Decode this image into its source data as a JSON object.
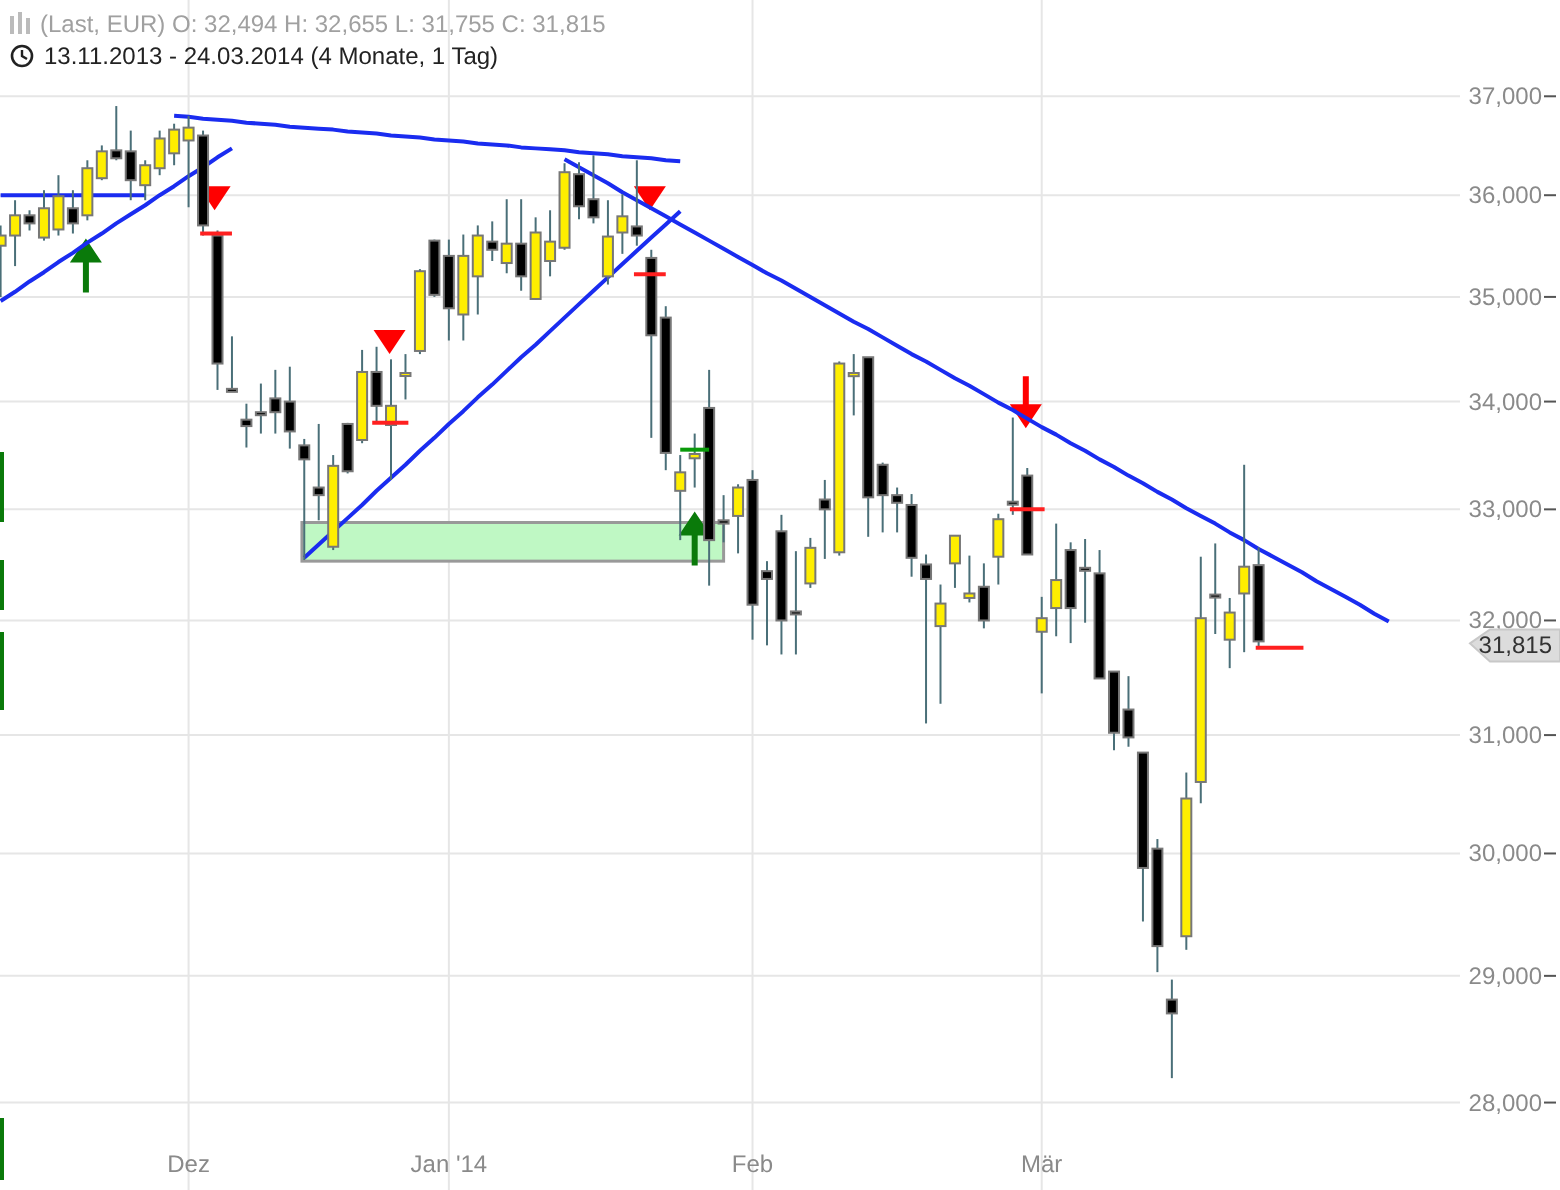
{
  "chart_data": {
    "type": "candlestick",
    "title": "(Last, EUR)   O: 32,494   H: 32,655   L: 31,755   C: 31,815",
    "subtitle": "13.11.2013 - 24.03.2014 (4 Monate, 1 Tag)",
    "categories": [
      null,
      null,
      null,
      null,
      null,
      null,
      null,
      null,
      null,
      null,
      null,
      null,
      null,
      "Dez",
      null,
      null,
      null,
      null,
      null,
      null,
      null,
      null,
      null,
      null,
      null,
      null,
      null,
      null,
      null,
      null,
      null,
      "Jan '14",
      null,
      null,
      null,
      null,
      null,
      null,
      null,
      null,
      null,
      null,
      null,
      null,
      null,
      null,
      null,
      null,
      null,
      null,
      null,
      null,
      "Feb",
      null,
      null,
      null,
      null,
      null,
      null,
      null,
      null,
      null,
      null,
      null,
      null,
      null,
      null,
      null,
      null,
      null,
      null,
      null,
      "Mär",
      null,
      null,
      null,
      null,
      null,
      null,
      null,
      null,
      null,
      null,
      null,
      null,
      null,
      null,
      null,
      null,
      null,
      null,
      null,
      null,
      null,
      null,
      null,
      null,
      null,
      null,
      null,
      null,
      null,
      null,
      null,
      null,
      null,
      null,
      null
    ],
    "ohlc": [
      [
        35500,
        35700,
        35000,
        35600
      ],
      [
        35600,
        35950,
        35300,
        35800
      ],
      [
        35800,
        35850,
        35650,
        35720
      ],
      [
        35580,
        36050,
        35550,
        35870
      ],
      [
        35660,
        36200,
        35600,
        35990
      ],
      [
        35870,
        36050,
        35620,
        35720
      ],
      [
        35800,
        36350,
        35750,
        36270
      ],
      [
        36170,
        36500,
        36150,
        36440
      ],
      [
        36450,
        36900,
        36350,
        36370
      ],
      [
        36440,
        36650,
        35950,
        36150
      ],
      [
        36100,
        36350,
        35950,
        36300
      ],
      [
        36270,
        36650,
        36200,
        36570
      ],
      [
        36420,
        36720,
        36300,
        36660
      ],
      [
        36550,
        36800,
        35880,
        36680
      ],
      [
        36600,
        36650,
        35600,
        35700
      ],
      [
        35600,
        35650,
        34110,
        34360
      ],
      [
        34120,
        34620,
        34090,
        34100
      ],
      [
        33830,
        33980,
        33570,
        33770
      ],
      [
        33900,
        34170,
        33700,
        33880
      ],
      [
        34030,
        34300,
        33700,
        33900
      ],
      [
        34000,
        34330,
        33560,
        33720
      ],
      [
        33590,
        33650,
        32540,
        33460
      ],
      [
        33200,
        33790,
        32900,
        33130
      ],
      [
        32660,
        33500,
        32630,
        33400
      ],
      [
        33790,
        33800,
        33330,
        33350
      ],
      [
        33640,
        34490,
        33610,
        34280
      ],
      [
        34280,
        34520,
        33790,
        33960
      ],
      [
        33780,
        34400,
        33270,
        33960
      ],
      [
        34250,
        34450,
        34020,
        34270
      ],
      [
        34480,
        35270,
        34450,
        35250
      ],
      [
        35550,
        35560,
        35000,
        35020
      ],
      [
        35400,
        35560,
        34580,
        34890
      ],
      [
        34830,
        35610,
        34580,
        35400
      ],
      [
        35200,
        35700,
        34830,
        35600
      ],
      [
        35540,
        35740,
        35350,
        35460
      ],
      [
        35330,
        35960,
        35230,
        35520
      ],
      [
        35520,
        35960,
        35060,
        35200
      ],
      [
        34980,
        35780,
        34970,
        35630
      ],
      [
        35350,
        35850,
        35200,
        35540
      ],
      [
        35480,
        36320,
        35460,
        36230
      ],
      [
        36210,
        36330,
        35760,
        35890
      ],
      [
        35960,
        36400,
        35720,
        35780
      ],
      [
        35200,
        35950,
        35120,
        35590
      ],
      [
        35630,
        36010,
        35420,
        35790
      ],
      [
        35690,
        36350,
        35500,
        35600
      ],
      [
        35380,
        35460,
        33660,
        34630
      ],
      [
        34800,
        34910,
        33360,
        33520
      ],
      [
        33170,
        33500,
        32720,
        33340
      ],
      [
        33470,
        33700,
        33200,
        33510
      ],
      [
        33940,
        34300,
        32310,
        32720
      ],
      [
        32900,
        33130,
        32700,
        32870
      ],
      [
        32940,
        33230,
        32600,
        33200
      ],
      [
        33270,
        33360,
        31830,
        32140
      ],
      [
        32440,
        32530,
        31780,
        32370
      ],
      [
        32800,
        32950,
        31700,
        32000
      ],
      [
        32080,
        32620,
        31700,
        32070
      ],
      [
        32330,
        32740,
        32290,
        32650
      ],
      [
        33090,
        33270,
        32550,
        33000
      ],
      [
        32610,
        34380,
        32580,
        34360
      ],
      [
        34240,
        34450,
        33870,
        34270
      ],
      [
        34420,
        34420,
        32750,
        33110
      ],
      [
        33410,
        33430,
        32790,
        33130
      ],
      [
        33130,
        33200,
        32790,
        33060
      ],
      [
        33040,
        33140,
        32390,
        32560
      ],
      [
        32500,
        32590,
        31100,
        32370
      ],
      [
        31950,
        32320,
        31270,
        32150
      ],
      [
        32510,
        32760,
        32290,
        32760
      ],
      [
        32200,
        32580,
        32160,
        32240
      ],
      [
        32300,
        32510,
        31930,
        32000
      ],
      [
        32570,
        32960,
        32320,
        32910
      ],
      [
        33070,
        33850,
        32950,
        33060
      ],
      [
        33310,
        33380,
        32590,
        32590
      ],
      [
        31900,
        32210,
        31360,
        32020
      ],
      [
        32110,
        32870,
        31860,
        32360
      ],
      [
        32630,
        32700,
        31800,
        32110
      ],
      [
        32470,
        32730,
        31980,
        32460
      ],
      [
        32420,
        32630,
        31490,
        31490
      ],
      [
        31550,
        31550,
        30870,
        31020
      ],
      [
        31220,
        31510,
        30900,
        30980
      ],
      [
        30850,
        30850,
        29440,
        29880
      ],
      [
        30040,
        30120,
        29030,
        29240
      ],
      [
        28810,
        28970,
        28190,
        28700
      ],
      [
        29320,
        30680,
        29210,
        30460
      ],
      [
        30600,
        32570,
        30420,
        32020
      ],
      [
        32230,
        32690,
        31880,
        32220
      ],
      [
        31830,
        32200,
        31580,
        32070
      ],
      [
        32240,
        33410,
        31720,
        32480
      ],
      [
        32494,
        32655,
        31755,
        31815
      ],
      null,
      null,
      null,
      null,
      null,
      null,
      null,
      null,
      null,
      null,
      null,
      null,
      null,
      null,
      null,
      null,
      null,
      null,
      null,
      null
    ],
    "series": [
      {
        "type": "line",
        "color": "#1a2cf0",
        "values": [
          34960,
          35050,
          35150,
          35240,
          35340,
          35430,
          35530,
          35620,
          35720,
          35810,
          35900,
          36000,
          36090,
          36190,
          36280,
          36380,
          36470,
          null,
          null,
          null,
          null,
          null,
          null,
          null,
          null,
          null,
          null,
          null,
          null,
          null,
          null,
          null,
          null,
          null,
          null,
          null,
          null,
          null,
          null,
          null,
          null,
          null,
          null,
          null,
          null,
          null,
          null,
          null,
          null,
          null,
          null,
          null,
          null,
          null,
          null,
          null,
          null,
          null,
          null,
          null,
          null,
          null,
          null,
          null,
          null,
          null,
          null,
          null,
          null,
          null,
          null,
          null,
          null,
          null,
          null,
          null,
          null,
          null,
          null,
          null,
          null,
          null,
          null,
          null,
          null,
          null,
          null,
          null,
          null,
          null,
          null,
          null,
          null,
          null,
          null,
          null,
          null,
          null,
          null,
          null,
          null,
          null,
          null,
          null,
          null,
          null,
          null,
          null
        ]
      },
      {
        "type": "line",
        "color": "#1a2cf0",
        "values": [
          36000,
          36000,
          36000,
          36000,
          36000,
          36000,
          36000,
          36000,
          36000,
          36000,
          36000,
          null,
          null,
          null,
          null,
          null,
          null,
          null,
          null,
          null,
          null,
          null,
          null,
          null,
          null,
          null,
          null,
          null,
          null,
          null,
          null,
          null,
          null,
          null,
          null,
          null,
          null,
          null,
          null,
          null,
          null,
          null,
          null,
          null,
          null,
          null,
          null,
          null,
          null,
          null,
          null,
          null,
          null,
          null,
          null,
          null,
          null,
          null,
          null,
          null,
          null,
          null,
          null,
          null,
          null,
          null,
          null,
          null,
          null,
          null,
          null,
          null,
          null,
          null,
          null,
          null,
          null,
          null,
          null,
          null,
          null,
          null,
          null,
          null,
          null,
          null,
          null,
          null,
          null,
          null,
          null,
          null,
          null,
          null,
          null,
          null,
          null,
          null,
          null,
          null,
          null,
          null,
          null,
          null,
          null,
          null,
          null,
          null
        ]
      },
      {
        "type": "line",
        "color": "#1a2cf0",
        "values": [
          null,
          null,
          null,
          null,
          null,
          null,
          null,
          null,
          null,
          null,
          null,
          null,
          36800,
          36790,
          36770,
          36760,
          36750,
          36730,
          36720,
          36710,
          36690,
          36680,
          36670,
          36660,
          36640,
          36630,
          36620,
          36600,
          36590,
          36580,
          36560,
          36550,
          36540,
          36520,
          36510,
          36500,
          36480,
          36470,
          36460,
          36450,
          36430,
          36420,
          36410,
          36390,
          36380,
          36370,
          36350,
          36340,
          null,
          null,
          null,
          null,
          null,
          null,
          null,
          null,
          null,
          null,
          null,
          null,
          null,
          null,
          null,
          null,
          null,
          null,
          null,
          null,
          null,
          null,
          null,
          null,
          null,
          null,
          null,
          null,
          null,
          null,
          null,
          null,
          null,
          null,
          null,
          null,
          null,
          null,
          null,
          null,
          null,
          null,
          null,
          null,
          null,
          null,
          null,
          null,
          null,
          null,
          null,
          null,
          null,
          null,
          null,
          null,
          null,
          null,
          null,
          null
        ]
      },
      {
        "type": "line",
        "color": "#1a2cf0",
        "values": [
          null,
          null,
          null,
          null,
          null,
          null,
          null,
          null,
          null,
          null,
          null,
          null,
          null,
          null,
          null,
          null,
          null,
          null,
          null,
          null,
          null,
          32560,
          32680,
          32800,
          32920,
          33040,
          33170,
          33290,
          33410,
          33540,
          33660,
          33790,
          33910,
          34040,
          34160,
          34290,
          34420,
          34540,
          34670,
          34800,
          34930,
          35060,
          35190,
          35320,
          35450,
          35580,
          35710,
          35840,
          null,
          null,
          null,
          null,
          null,
          null,
          null,
          null,
          null,
          null,
          null,
          null,
          null,
          null,
          null,
          null,
          null,
          null,
          null,
          null,
          null,
          null,
          null,
          null,
          null,
          null,
          null,
          null,
          null,
          null,
          null,
          null,
          null,
          null,
          null,
          null,
          null,
          null,
          null,
          null,
          null,
          null,
          null,
          null,
          null,
          null,
          null,
          null,
          null,
          null,
          null,
          null,
          null,
          null,
          null,
          null,
          null,
          null,
          null,
          null
        ]
      },
      {
        "type": "line",
        "color": "#1a2cf0",
        "values": [
          null,
          null,
          null,
          null,
          null,
          null,
          null,
          null,
          null,
          null,
          null,
          null,
          null,
          null,
          null,
          null,
          null,
          null,
          null,
          null,
          null,
          null,
          null,
          null,
          null,
          null,
          null,
          null,
          null,
          null,
          null,
          null,
          null,
          null,
          null,
          null,
          null,
          null,
          null,
          36360,
          36280,
          36200,
          36120,
          36030,
          35950,
          35870,
          35790,
          35710,
          35630,
          35550,
          35470,
          35390,
          35310,
          35230,
          35160,
          35080,
          35000,
          34920,
          34840,
          34760,
          34690,
          34610,
          34530,
          34450,
          34380,
          34300,
          34220,
          34150,
          34070,
          33990,
          33920,
          33840,
          33760,
          33690,
          33610,
          33540,
          33460,
          33390,
          33310,
          33240,
          33160,
          33090,
          33010,
          32940,
          32870,
          32790,
          32720,
          32640,
          32570,
          32500,
          32430,
          32350,
          32280,
          32210,
          32140,
          32060,
          31990,
          null,
          null,
          null,
          null,
          null,
          null,
          null,
          null,
          null,
          null,
          null
        ]
      }
    ],
    "annotations": [
      "31,815"
    ],
    "yticks": [
      {
        "value": 28000,
        "label": "28,000"
      },
      {
        "value": 29000,
        "label": "29,000"
      },
      {
        "value": 30000,
        "label": "30,000"
      },
      {
        "value": 31000,
        "label": "31,000"
      },
      {
        "value": 32000,
        "label": "32,000"
      },
      {
        "value": 33000,
        "label": "33,000"
      },
      {
        "value": 34000,
        "label": "34,000"
      },
      {
        "value": 35000,
        "label": "35,000"
      },
      {
        "value": 36000,
        "label": "36,000"
      },
      {
        "value": 37000,
        "label": "37,000"
      }
    ],
    "ylim": [
      27330,
      38000
    ],
    "log": true,
    "grid": true,
    "line_style": "solid"
  }
}
